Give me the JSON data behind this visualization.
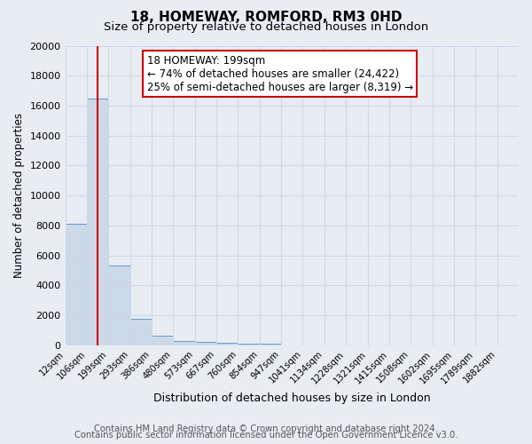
{
  "title": "18, HOMEWAY, ROMFORD, RM3 0HD",
  "subtitle": "Size of property relative to detached houses in London",
  "xlabel": "Distribution of detached houses by size in London",
  "ylabel": "Number of detached properties",
  "bar_labels": [
    "12sqm",
    "106sqm",
    "199sqm",
    "293sqm",
    "386sqm",
    "480sqm",
    "573sqm",
    "667sqm",
    "760sqm",
    "854sqm",
    "947sqm",
    "1041sqm",
    "1134sqm",
    "1228sqm",
    "1321sqm",
    "1415sqm",
    "1508sqm",
    "1602sqm",
    "1695sqm",
    "1789sqm",
    "1882sqm"
  ],
  "bar_values": [
    8100,
    16500,
    5300,
    1750,
    650,
    300,
    200,
    150,
    120,
    100,
    0,
    0,
    0,
    0,
    0,
    0,
    0,
    0,
    0,
    0,
    0
  ],
  "bar_color": "#ccd9e8",
  "bar_edgecolor": "#6699cc",
  "ylim": [
    0,
    20000
  ],
  "yticks": [
    0,
    2000,
    4000,
    6000,
    8000,
    10000,
    12000,
    14000,
    16000,
    18000,
    20000
  ],
  "vline_x": 1.5,
  "vline_color": "#cc0000",
  "annotation_title": "18 HOMEWAY: 199sqm",
  "annotation_line1": "← 74% of detached houses are smaller (24,422)",
  "annotation_line2": "25% of semi-detached houses are larger (8,319) →",
  "annotation_box_color": "#ffffff",
  "annotation_box_edgecolor": "#cc0000",
  "footer_line1": "Contains HM Land Registry data © Crown copyright and database right 2024.",
  "footer_line2": "Contains public sector information licensed under the Open Government Licence v3.0.",
  "background_color": "#e8edf4",
  "plot_bg_color": "#e8edf4",
  "grid_color": "#d0d8e8",
  "title_fontsize": 11,
  "subtitle_fontsize": 9.5,
  "footer_fontsize": 7.2
}
